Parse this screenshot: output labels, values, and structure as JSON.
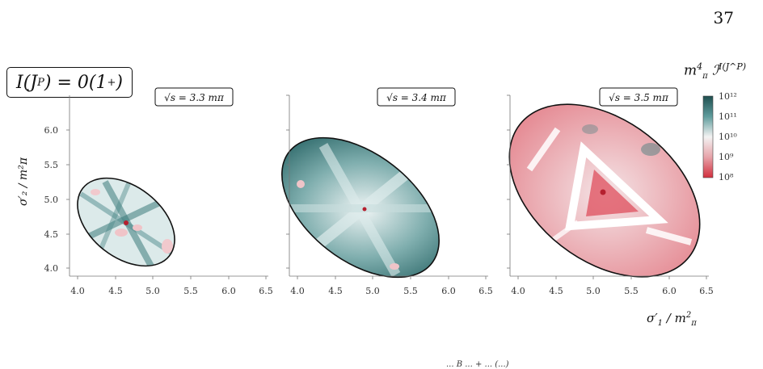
{
  "page_number": "37",
  "panel_label": {
    "prefix": "I(J",
    "sup": "P",
    "suffix": ") = 0(1",
    "sup2": "+",
    "end": ")"
  },
  "colorbar": {
    "title_main": "m",
    "title_sup": "4",
    "title_sub": "π",
    "title_symbol": " ℐ",
    "title_sup2": "I(J^P)",
    "tick_labels": [
      "10¹²",
      "10¹¹",
      "10¹⁰",
      "10⁹",
      "10⁸"
    ],
    "colors": {
      "high": "#24595a",
      "mid": "#f2f2f2",
      "low": "#d63b47"
    }
  },
  "axes": {
    "ylabel": "σ′₂ / m²π",
    "xlabel_main": "σ′",
    "xlabel_sub": "1",
    "xlabel_rest": " / m",
    "xlabel_sup": "2",
    "xlabel_sub2": "π",
    "x_ticks": [
      "4.0",
      "4.5",
      "5.0",
      "5.5",
      "6.0",
      "6.5"
    ],
    "y_ticks": [
      "4.0",
      "4.5",
      "5.0",
      "5.5",
      "6.0"
    ]
  },
  "chart_data": [
    {
      "type": "heatmap",
      "annotation": "√s = 3.3 mπ",
      "xlim": [
        4.0,
        6.5
      ],
      "ylim": [
        3.95,
        6.35
      ],
      "dominant": "mixed",
      "region_center": [
        4.63,
        4.63
      ],
      "minimum_point": [
        4.62,
        4.62
      ]
    },
    {
      "type": "heatmap",
      "annotation": "√s = 3.4 mπ",
      "xlim": [
        4.0,
        6.5
      ],
      "ylim": [
        3.95,
        6.35
      ],
      "dominant": "high",
      "region_center": [
        4.85,
        4.85
      ],
      "minimum_point": [
        4.85,
        4.85
      ]
    },
    {
      "type": "heatmap",
      "annotation": "√s = 3.5 mπ",
      "xlim": [
        4.0,
        6.5
      ],
      "ylim": [
        3.95,
        6.35
      ],
      "dominant": "low",
      "region_center": [
        5.1,
        5.1
      ],
      "minimum_point": [
        5.1,
        5.1
      ]
    }
  ],
  "caption_fragment": "... B ... + ... (...)"
}
